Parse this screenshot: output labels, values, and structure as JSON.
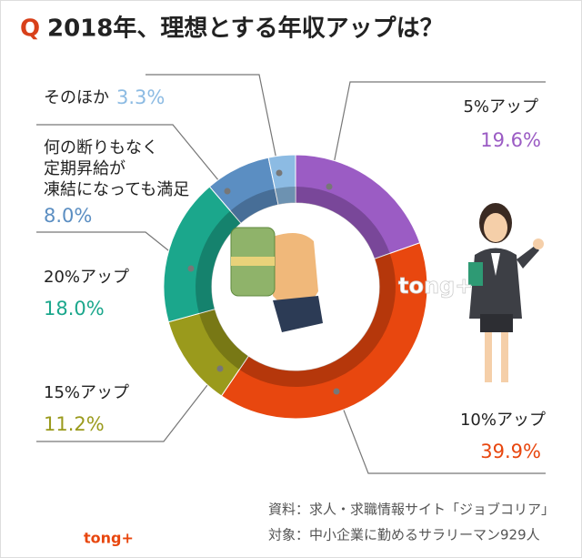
{
  "chart_data": {
    "type": "donut",
    "q_mark": "Q",
    "title": "2018年、理想とする年収アップは？",
    "categories": [
      "5%アップ",
      "10%アップ",
      "15%アップ",
      "20%アップ",
      "何の断りもなく\n定期昇給が\n凍結になっても満足",
      "そのほか"
    ],
    "values": [
      19.6,
      39.9,
      11.2,
      18.0,
      8.0,
      3.3
    ],
    "value_labels": [
      "19.6%",
      "39.9%",
      "11.2%",
      "18.0%",
      "8.0%",
      "3.3%"
    ],
    "colors": [
      "#9b5cc4",
      "#e8470f",
      "#9a9a1c",
      "#1ba78c",
      "#5b8ec2",
      "#8cbbe3"
    ],
    "source": "資料：求人・求職情報サイト「ジョブコリア」",
    "subject": "対象：中小企業に勤めるサラリーマン929人",
    "logo": "tong+"
  }
}
